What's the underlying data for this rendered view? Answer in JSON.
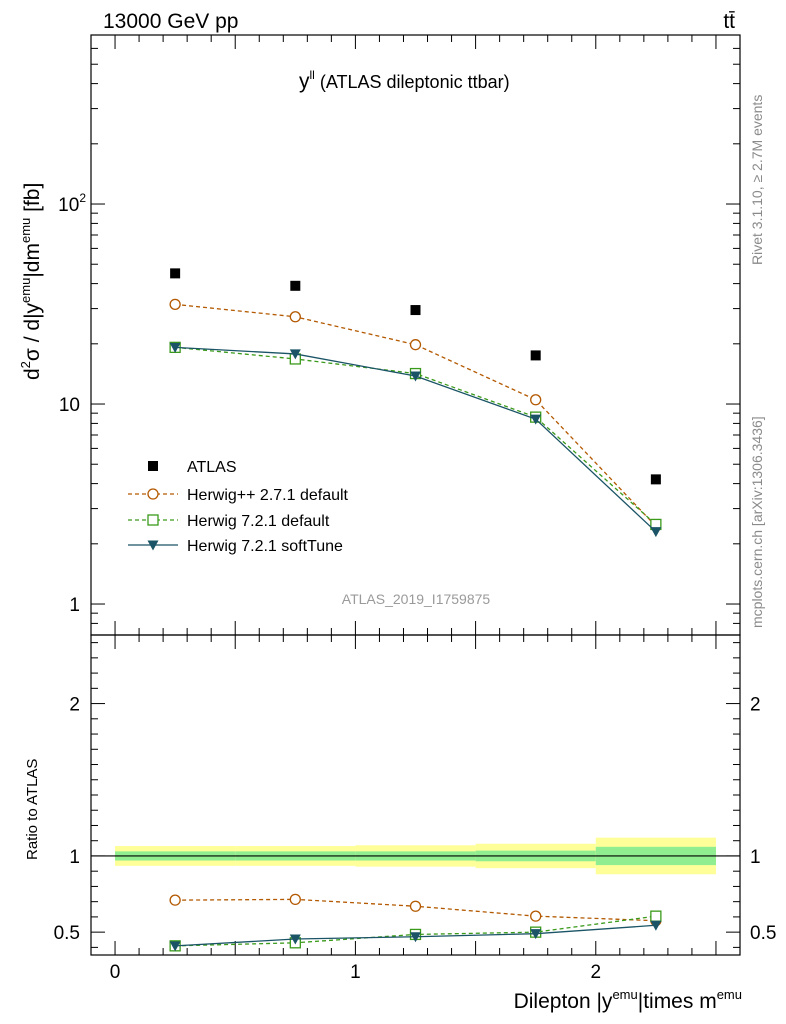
{
  "header": {
    "left": "13000 GeV pp",
    "right": "tt̄"
  },
  "title_main": {
    "base": "y",
    "sup": "ll",
    "rest": " (ATLAS dileptonic ttbar)"
  },
  "watermark": "ATLAS_2019_I1759875",
  "side_text": {
    "upper": "Rivet 3.1.10, ≥ 2.7M events",
    "lower": "mcplots.cern.ch [arXiv:1306.3436]"
  },
  "ylabel_top": {
    "d": "d",
    "sup2": "2",
    "mid1": "σ / d|y",
    "sup_emu1": "emu",
    "mid2": "|dm",
    "sup_emu2": "emu",
    "tail": " [fb]"
  },
  "ylabel_bottom": "Ratio to ATLAS",
  "xlabel": {
    "pre": "Dilepton |y",
    "sup1": "emu",
    "mid": "|times m",
    "sup2": "emu"
  },
  "colors": {
    "data": "#000000",
    "herwigpp": "#b35900",
    "herwig721": "#3a9a1a",
    "softtune": "#1a5466",
    "band_inner": "#90ee90",
    "band_outer": "#ffff99"
  },
  "chart_data": [
    {
      "type": "scatter",
      "panel": "main",
      "yscale": "log",
      "ylim": [
        0.7,
        700
      ],
      "xlim": [
        -0.1,
        2.6
      ],
      "yticks": [
        {
          "v": 1,
          "base": "1",
          "exp": ""
        },
        {
          "v": 10,
          "base": "10",
          "exp": ""
        },
        {
          "v": 100,
          "base": "10",
          "exp": "2"
        }
      ],
      "legend_position": "bottom-left",
      "series": [
        {
          "name": "ATLAS",
          "key": "data",
          "x": [
            0.25,
            0.75,
            1.25,
            1.75,
            2.25
          ],
          "y": [
            45,
            39,
            29.5,
            17.5,
            4.2
          ]
        },
        {
          "name": "Herwig++ 2.7.1 default",
          "key": "herwigpp",
          "x": [
            0.25,
            0.75,
            1.25,
            1.75,
            2.25
          ],
          "y": [
            31.5,
            27.3,
            19.8,
            10.5,
            2.45
          ]
        },
        {
          "name": "Herwig 7.2.1 default",
          "key": "herwig721",
          "x": [
            0.25,
            0.75,
            1.25,
            1.75,
            2.25
          ],
          "y": [
            19.2,
            16.8,
            14.2,
            8.6,
            2.5
          ]
        },
        {
          "name": "Herwig 7.2.1 softTune",
          "key": "softtune",
          "x": [
            0.25,
            0.75,
            1.25,
            1.75,
            2.25
          ],
          "y": [
            19.2,
            17.8,
            13.8,
            8.4,
            2.3
          ]
        }
      ]
    },
    {
      "type": "line",
      "panel": "ratio",
      "ylim": [
        0.35,
        2.45
      ],
      "xlim": [
        -0.1,
        2.6
      ],
      "xticks": [
        "0",
        "1",
        "2"
      ],
      "yticks": [
        "0.5",
        "1",
        "2"
      ],
      "bands": [
        {
          "x0": 0,
          "x1": 0.5,
          "inner": [
            0.97,
            1.03
          ],
          "outer": [
            0.935,
            1.065
          ]
        },
        {
          "x0": 0.5,
          "x1": 1.0,
          "inner": [
            0.97,
            1.03
          ],
          "outer": [
            0.935,
            1.065
          ]
        },
        {
          "x0": 1.0,
          "x1": 1.5,
          "inner": [
            0.97,
            1.03
          ],
          "outer": [
            0.93,
            1.07
          ]
        },
        {
          "x0": 1.5,
          "x1": 2.0,
          "inner": [
            0.965,
            1.035
          ],
          "outer": [
            0.92,
            1.08
          ]
        },
        {
          "x0": 2.0,
          "x1": 2.5,
          "inner": [
            0.94,
            1.06
          ],
          "outer": [
            0.88,
            1.12
          ]
        }
      ],
      "series": [
        {
          "name": "Herwig++ 2.7.1 default",
          "key": "herwigpp",
          "x": [
            0.25,
            0.75,
            1.25,
            1.75,
            2.25
          ],
          "y": [
            0.71,
            0.715,
            0.67,
            0.605,
            0.575
          ]
        },
        {
          "name": "Herwig 7.2.1 default",
          "key": "herwig721",
          "x": [
            0.25,
            0.75,
            1.25,
            1.75,
            2.25
          ],
          "y": [
            0.41,
            0.43,
            0.485,
            0.5,
            0.605
          ]
        },
        {
          "name": "Herwig 7.2.1 softTune",
          "key": "softtune",
          "x": [
            0.25,
            0.75,
            1.25,
            1.75,
            2.25
          ],
          "y": [
            0.41,
            0.455,
            0.47,
            0.49,
            0.545
          ]
        }
      ]
    }
  ]
}
